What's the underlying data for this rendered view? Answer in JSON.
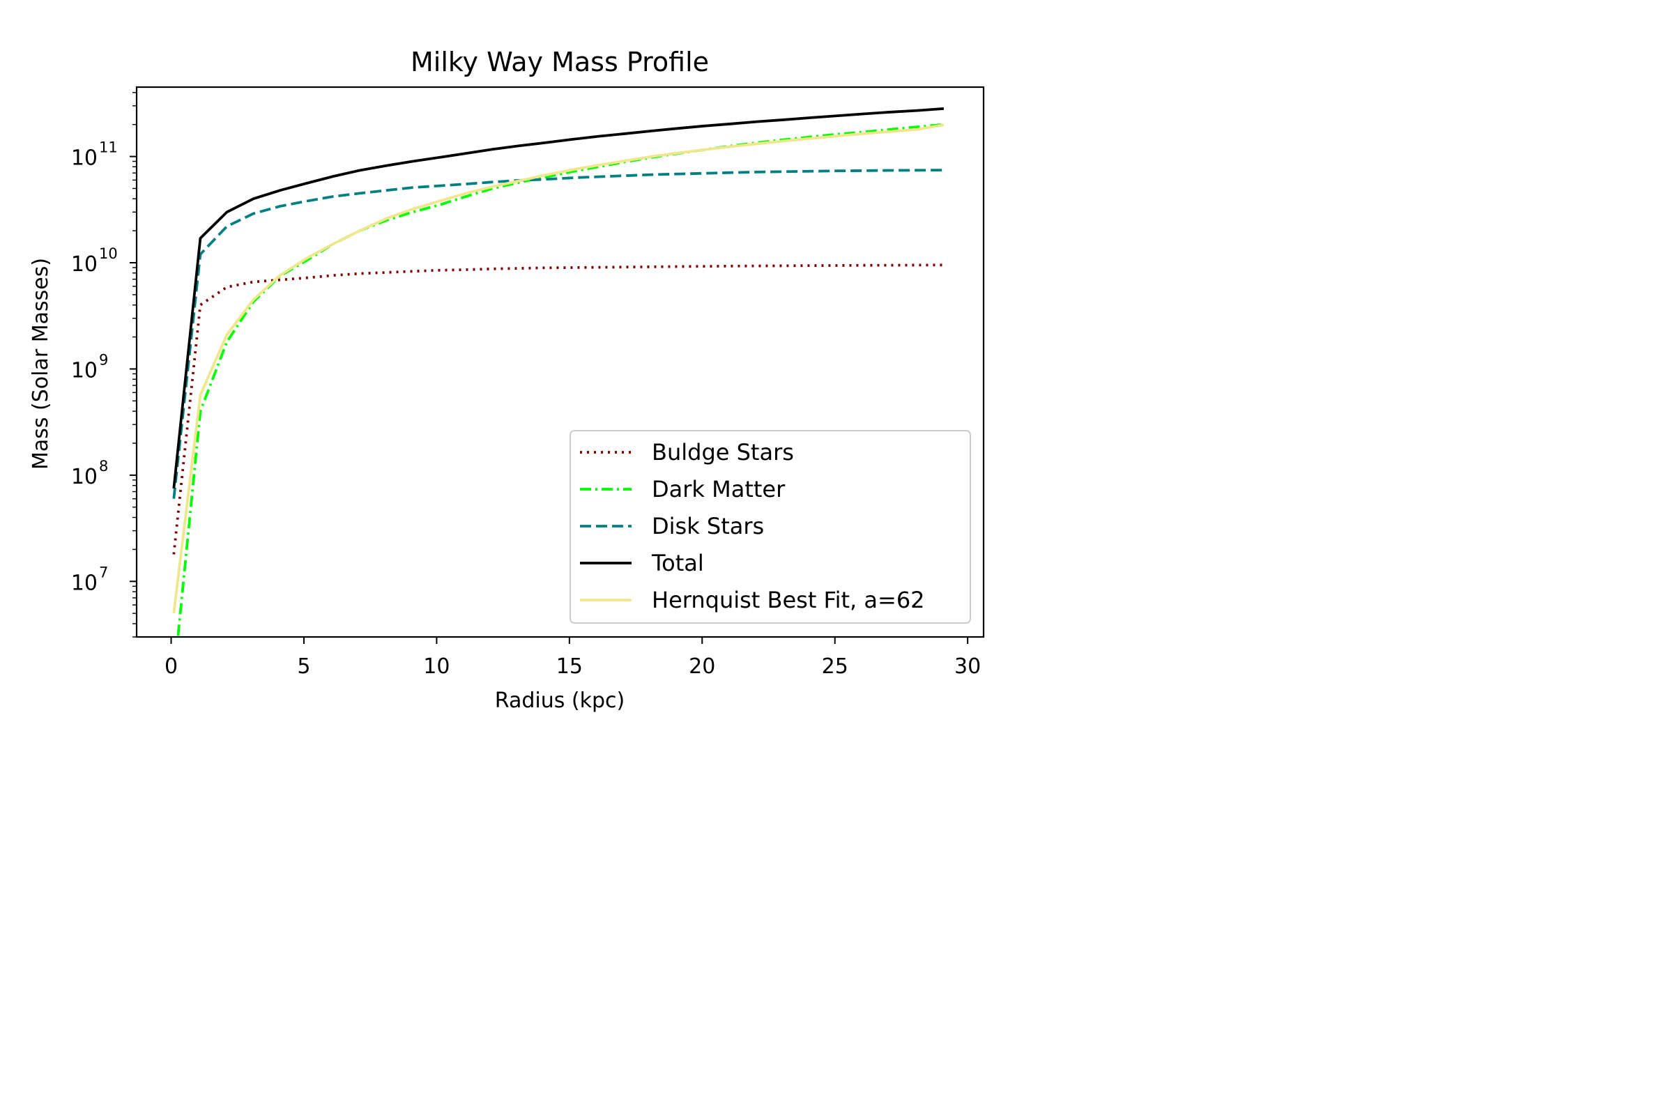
{
  "chart_data": {
    "type": "line",
    "title": "Milky Way Mass Profile",
    "xlabel": "Radius (kpc)",
    "ylabel": "Mass (Solar Masses)",
    "xscale": "linear",
    "yscale": "log",
    "xlim": [
      -1.3,
      30.6
    ],
    "ylim": [
      3000000.0,
      450000000000.0
    ],
    "xticks": [
      0,
      5,
      10,
      15,
      20,
      25,
      30
    ],
    "yticks": [
      {
        "base": "10",
        "exp": "7",
        "value": 10000000.0
      },
      {
        "base": "10",
        "exp": "8",
        "value": 100000000.0
      },
      {
        "base": "10",
        "exp": "9",
        "value": 1000000000.0
      },
      {
        "base": "10",
        "exp": "10",
        "value": 10000000000.0
      },
      {
        "base": "10",
        "exp": "11",
        "value": 100000000000.0
      }
    ],
    "grid": false,
    "legend_position": "lower-right",
    "x": [
      0.1,
      1.1,
      2.1,
      3.1,
      4.1,
      5.1,
      6.1,
      7.1,
      8.1,
      9.1,
      10.1,
      11.1,
      12.1,
      13.1,
      14.1,
      15.1,
      16.1,
      17.1,
      18.1,
      19.1,
      20.1,
      21.1,
      22.1,
      23.1,
      24.1,
      25.1,
      26.1,
      27.1,
      28.1,
      29.1
    ],
    "series": [
      {
        "name": "Buldge Stars",
        "color": "#800000",
        "style": "dotted",
        "values": [
          18000000.0,
          4000000000.0,
          5900000000.0,
          6600000000.0,
          6900000000.0,
          7200000000.0,
          7600000000.0,
          7900000000.0,
          8100000000.0,
          8300000000.0,
          8500000000.0,
          8600000000.0,
          8750000000.0,
          8850000000.0,
          8950000000.0,
          9000000000.0,
          9050000000.0,
          9100000000.0,
          9150000000.0,
          9200000000.0,
          9250000000.0,
          9300000000.0,
          9330000000.0,
          9360000000.0,
          9400000000.0,
          9420000000.0,
          9450000000.0,
          9470000000.0,
          9500000000.0,
          9520000000.0
        ]
      },
      {
        "name": "Dark Matter",
        "color": "#00ff00",
        "style": "dashdot",
        "values": [
          0,
          400000000.0,
          1800000000.0,
          4300000000.0,
          7500000000.0,
          10500000000.0,
          15000000000.0,
          20000000000.0,
          25000000000.0,
          30000000000.0,
          35000000000.0,
          42000000000.0,
          50000000000.0,
          57000000000.0,
          64000000000.0,
          72000000000.0,
          80000000000.0,
          89000000000.0,
          98000000000.0,
          107000000000.0,
          116000000000.0,
          126000000000.0,
          135000000000.0,
          144000000000.0,
          153000000000.0,
          162000000000.0,
          170000000000.0,
          180000000000.0,
          190000000000.0,
          200000000000.0
        ]
      },
      {
        "name": "Disk Stars",
        "color": "#008080",
        "style": "dashed",
        "values": [
          60000000.0,
          12000000000.0,
          22000000000.0,
          29000000000.0,
          34000000000.0,
          38000000000.0,
          42000000000.0,
          45000000000.0,
          48000000000.0,
          51000000000.0,
          53000000000.0,
          55000000000.0,
          57500000000.0,
          59500000000.0,
          61000000000.0,
          63000000000.0,
          64500000000.0,
          66000000000.0,
          67500000000.0,
          68500000000.0,
          69500000000.0,
          70500000000.0,
          71500000000.0,
          72000000000.0,
          72700000000.0,
          73200000000.0,
          73600000000.0,
          74000000000.0,
          74200000000.0,
          74500000000.0
        ]
      },
      {
        "name": "Total",
        "color": "#000000",
        "style": "solid",
        "values": [
          75000000.0,
          17000000000.0,
          30000000000.0,
          40000000000.0,
          48000000000.0,
          56000000000.0,
          65000000000.0,
          74000000000.0,
          82000000000.0,
          90000000000.0,
          98000000000.0,
          107000000000.0,
          117000000000.0,
          126000000000.0,
          135000000000.0,
          145000000000.0,
          155000000000.0,
          164000000000.0,
          174000000000.0,
          184000000000.0,
          194000000000.0,
          203000000000.0,
          213000000000.0,
          222000000000.0,
          232000000000.0,
          242000000000.0,
          252000000000.0,
          262000000000.0,
          271000000000.0,
          282000000000.0
        ]
      },
      {
        "name": "Hernquist Best Fit, a=62",
        "color": "#f0e68c",
        "style": "solid",
        "values": [
          5000000.0,
          570000000.0,
          2100000000.0,
          4500000000.0,
          7600000000.0,
          11000000000.0,
          15000000000.0,
          20000000000.0,
          26000000000.0,
          32000000000.0,
          38000000000.0,
          45000000000.0,
          52000000000.0,
          59000000000.0,
          67000000000.0,
          75000000000.0,
          83000000000.0,
          91000000000.0,
          100000000000.0,
          108000000000.0,
          116000000000.0,
          124000000000.0,
          132000000000.0,
          140000000000.0,
          148000000000.0,
          156000000000.0,
          164000000000.0,
          172000000000.0,
          180000000000.0,
          198000000000.0
        ]
      }
    ]
  }
}
